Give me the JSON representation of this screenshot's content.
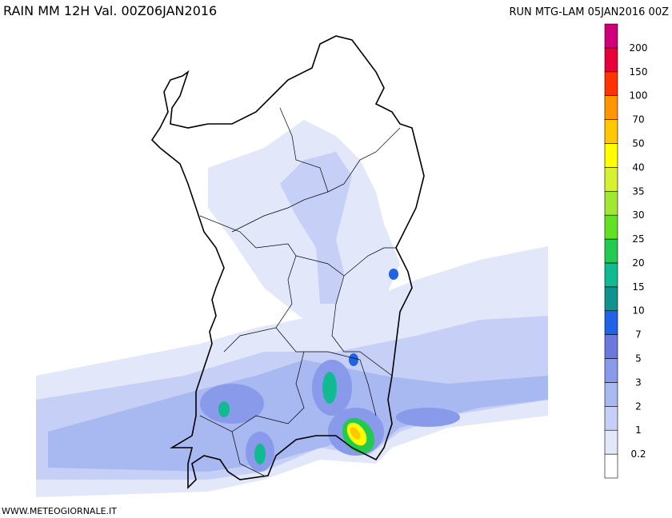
{
  "header": {
    "title": "RAIN  MM  12H  Val. 00Z06JAN2016",
    "run": "RUN  MTG-LAM  05JAN2016  00Z"
  },
  "legend": {
    "labels": [
      0.2,
      1,
      2,
      3,
      5,
      7,
      10,
      15,
      20,
      25,
      30,
      35,
      40,
      50,
      70,
      100,
      150,
      200
    ],
    "colors": [
      "#ffffff",
      "#e2e8fa",
      "#c6d0f6",
      "#a8b8f0",
      "#8a9aea",
      "#6c78de",
      "#2262e6",
      "#10928e",
      "#12ba92",
      "#22ca52",
      "#62e022",
      "#a2e832",
      "#d8f032",
      "#ffff00",
      "#ffc800",
      "#ff9600",
      "#ff3400",
      "#e8003c",
      "#d0007a"
    ]
  },
  "footer": {
    "source": "WWW.METEOGIORNALE.IT"
  }
}
